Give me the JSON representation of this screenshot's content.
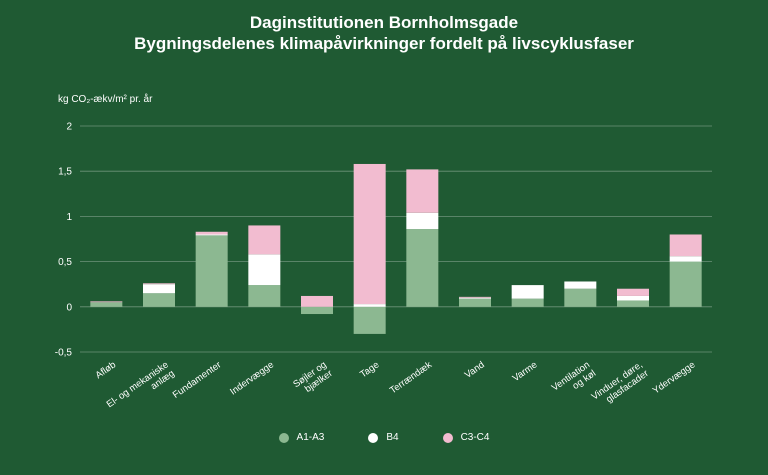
{
  "chart_data": {
    "type": "bar",
    "stacked": true,
    "title": "Daginstitutionen Bornholmsgade",
    "subtitle": "Bygningsdelenes klimapåvirkninger fordelt på livscyklusfaser",
    "ylabel": "kg CO₂-ækv/m² pr. år",
    "ylim": [
      -0.5,
      2
    ],
    "yticks": [
      2,
      1.5,
      1,
      0.5,
      0,
      -0.5
    ],
    "ytick_labels": [
      "2",
      "1,5",
      "1",
      "0,5",
      "0",
      "-0,5"
    ],
    "grid": true,
    "legend_position": "bottom",
    "categories": [
      "Afløb",
      "El- og mekaniske anlæg",
      "Fundamenter",
      "Indervægge",
      "Søjler og bjælker",
      "Tage",
      "Terrændæk",
      "Vand",
      "Varme",
      "Ventilation og køl",
      "Vinduer, døre, glasfacader",
      "Ydervægge"
    ],
    "category_lines": [
      [
        "Afløb"
      ],
      [
        "El- og mekaniske",
        "anlæg"
      ],
      [
        "Fundamenter"
      ],
      [
        "Indervægge"
      ],
      [
        "Søjler og",
        "bjælker"
      ],
      [
        "Tage"
      ],
      [
        "Terrændæk"
      ],
      [
        "Vand"
      ],
      [
        "Varme"
      ],
      [
        "Ventilation",
        "og køl"
      ],
      [
        "Vinduer, døre,",
        "glasfacader"
      ],
      [
        "Ydervægge"
      ]
    ],
    "series": [
      {
        "name": "A1-A3",
        "color": "#8cb891",
        "values": [
          0.05,
          0.15,
          0.79,
          0.24,
          -0.08,
          -0.3,
          0.86,
          0.09,
          0.09,
          0.2,
          0.07,
          0.5
        ]
      },
      {
        "name": "B4",
        "color": "#ffffff",
        "values": [
          0.0,
          0.1,
          0.01,
          0.34,
          0.0,
          0.03,
          0.18,
          0.01,
          0.15,
          0.08,
          0.05,
          0.06
        ]
      },
      {
        "name": "C3-C4",
        "color": "#f2bcd0",
        "values": [
          0.01,
          0.01,
          0.03,
          0.32,
          0.12,
          1.55,
          0.48,
          0.01,
          0.0,
          0.0,
          0.08,
          0.24
        ]
      }
    ]
  }
}
